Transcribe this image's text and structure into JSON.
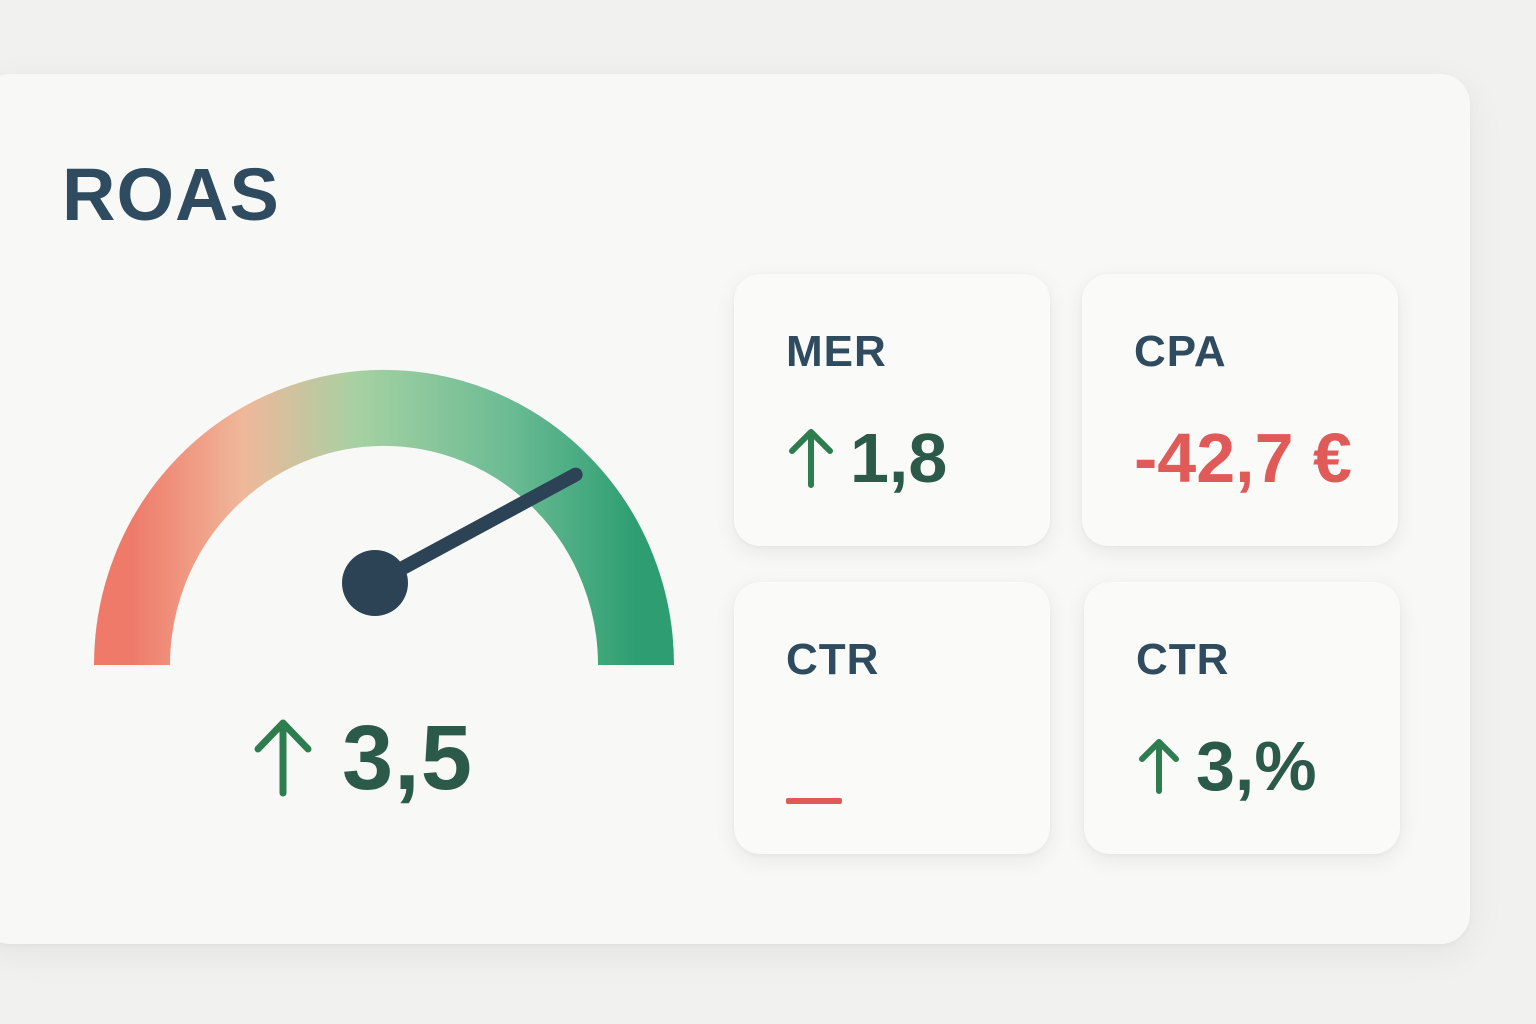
{
  "colors": {
    "title": "#2f4b5f",
    "positive": "#2b5a4b",
    "arrow": "#2e7d4f",
    "negative": "#e05a58",
    "needle": "#2c4356"
  },
  "roas": {
    "title": "ROAS",
    "value": "3,5",
    "trend_icon": "arrow-up-icon",
    "gauge_level": 0.78
  },
  "cards": {
    "mer": {
      "label": "MER",
      "value": "1,8",
      "trend_icon": "arrow-up-icon"
    },
    "cpa": {
      "label": "CPA",
      "value": "-42,7 €"
    },
    "ctr_a": {
      "label": "CTR",
      "value": "–"
    },
    "ctr_b": {
      "label": "CTR",
      "value": "3,%",
      "trend_icon": "arrow-up-icon"
    }
  }
}
